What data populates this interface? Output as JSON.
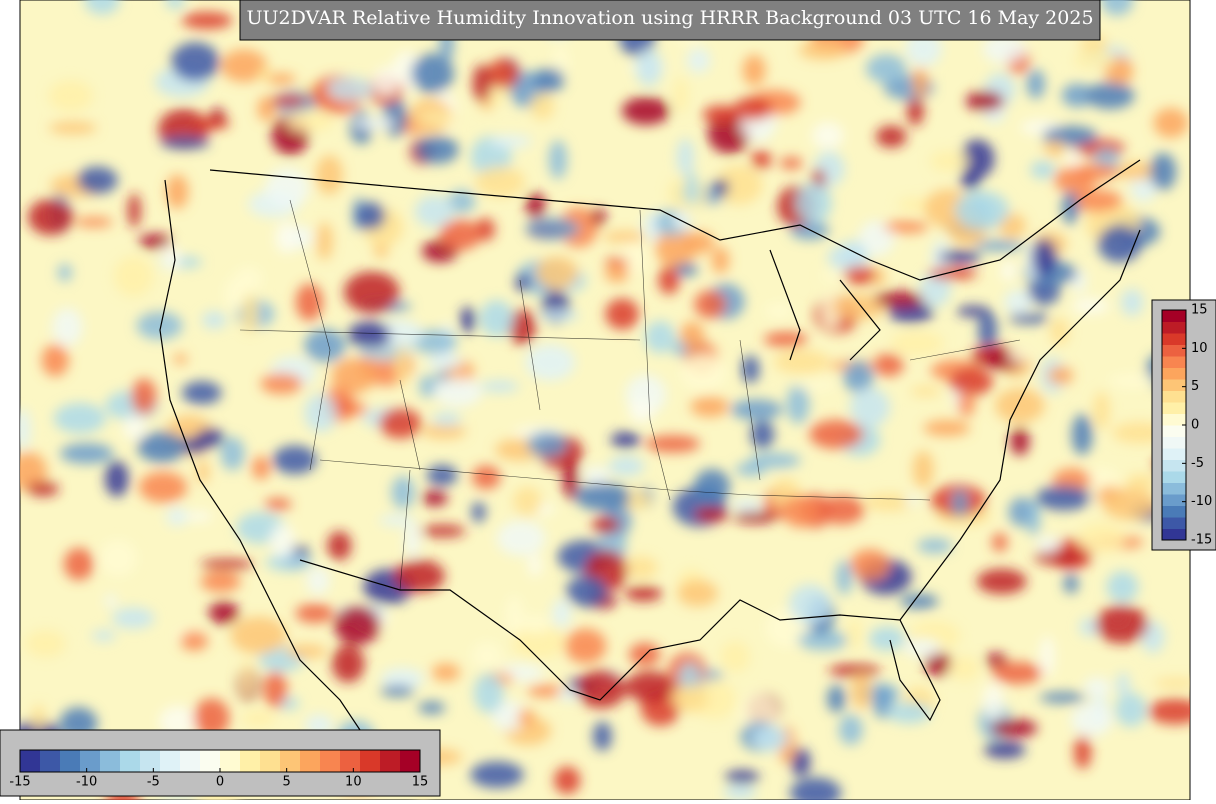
{
  "title": "UU2DVAR Relative Humidity Innovation using HRRR Background 03 UTC 16 May 2025",
  "colorbar": {
    "lim": [
      -15,
      15
    ],
    "ticks": [
      -15,
      -10,
      -5,
      0,
      5,
      10,
      15
    ],
    "colors": [
      "#313695",
      "#3d58a7",
      "#4a7bb7",
      "#6a9ccb",
      "#8bbcdb",
      "#abd9e9",
      "#c6e5f0",
      "#dff2f7",
      "#f0f8f6",
      "#fbfdf0",
      "#fffbd2",
      "#fff0a8",
      "#fee091",
      "#fdc576",
      "#fca55d",
      "#f88550",
      "#ec6140",
      "#d93929",
      "#bd1c26",
      "#a50026"
    ]
  }
}
